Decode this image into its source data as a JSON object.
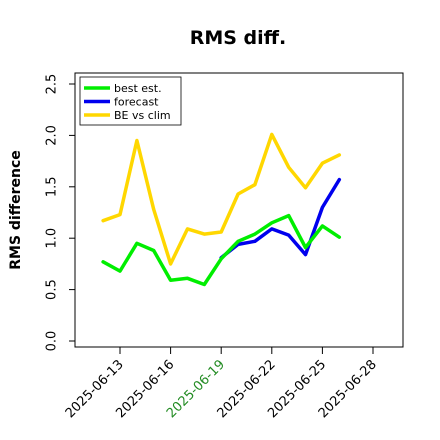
{
  "chart_data": {
    "type": "line",
    "title": "RMS diff.",
    "xlabel": "",
    "ylabel": "RMS difference",
    "ylim": [
      0.0,
      2.5
    ],
    "yticks": [
      "0.0",
      "0.5",
      "1.0",
      "1.5",
      "2.0",
      "2.5"
    ],
    "xticks": [
      {
        "label": "2025-06-13",
        "color": "#000000"
      },
      {
        "label": "2025-06-16",
        "color": "#000000"
      },
      {
        "label": "2025-06-19",
        "color": "#228B22"
      },
      {
        "label": "2025-06-22",
        "color": "#000000"
      },
      {
        "label": "2025-06-25",
        "color": "#000000"
      },
      {
        "label": "2025-06-28",
        "color": "#000000"
      }
    ],
    "legend_position": "top-left",
    "grid": false,
    "series": [
      {
        "name": "best est.",
        "color": "#00ee00",
        "x": [
          "2025-06-12",
          "2025-06-13",
          "2025-06-14",
          "2025-06-15",
          "2025-06-16",
          "2025-06-17",
          "2025-06-18",
          "2025-06-19",
          "2025-06-20",
          "2025-06-21",
          "2025-06-22",
          "2025-06-23",
          "2025-06-24",
          "2025-06-25",
          "2025-06-26"
        ],
        "values": [
          0.77,
          0.68,
          0.95,
          0.88,
          0.59,
          0.61,
          0.55,
          0.8,
          0.97,
          1.04,
          1.15,
          1.22,
          0.91,
          1.12,
          1.01
        ]
      },
      {
        "name": "forecast",
        "color": "#0000ee",
        "x": [
          "2025-06-19",
          "2025-06-20",
          "2025-06-21",
          "2025-06-22",
          "2025-06-23",
          "2025-06-24",
          "2025-06-25",
          "2025-06-26"
        ],
        "values": [
          0.81,
          0.94,
          0.97,
          1.09,
          1.03,
          0.84,
          1.3,
          1.57
        ]
      },
      {
        "name": "BE vs clim",
        "color": "#ffd700",
        "x": [
          "2025-06-12",
          "2025-06-13",
          "2025-06-14",
          "2025-06-15",
          "2025-06-16",
          "2025-06-17",
          "2025-06-18",
          "2025-06-19",
          "2025-06-20",
          "2025-06-21",
          "2025-06-22",
          "2025-06-23",
          "2025-06-24",
          "2025-06-25",
          "2025-06-26"
        ],
        "values": [
          1.17,
          1.23,
          1.95,
          1.28,
          0.75,
          1.09,
          1.04,
          1.06,
          1.43,
          1.52,
          2.01,
          1.69,
          1.49,
          1.73,
          1.81
        ]
      }
    ]
  }
}
